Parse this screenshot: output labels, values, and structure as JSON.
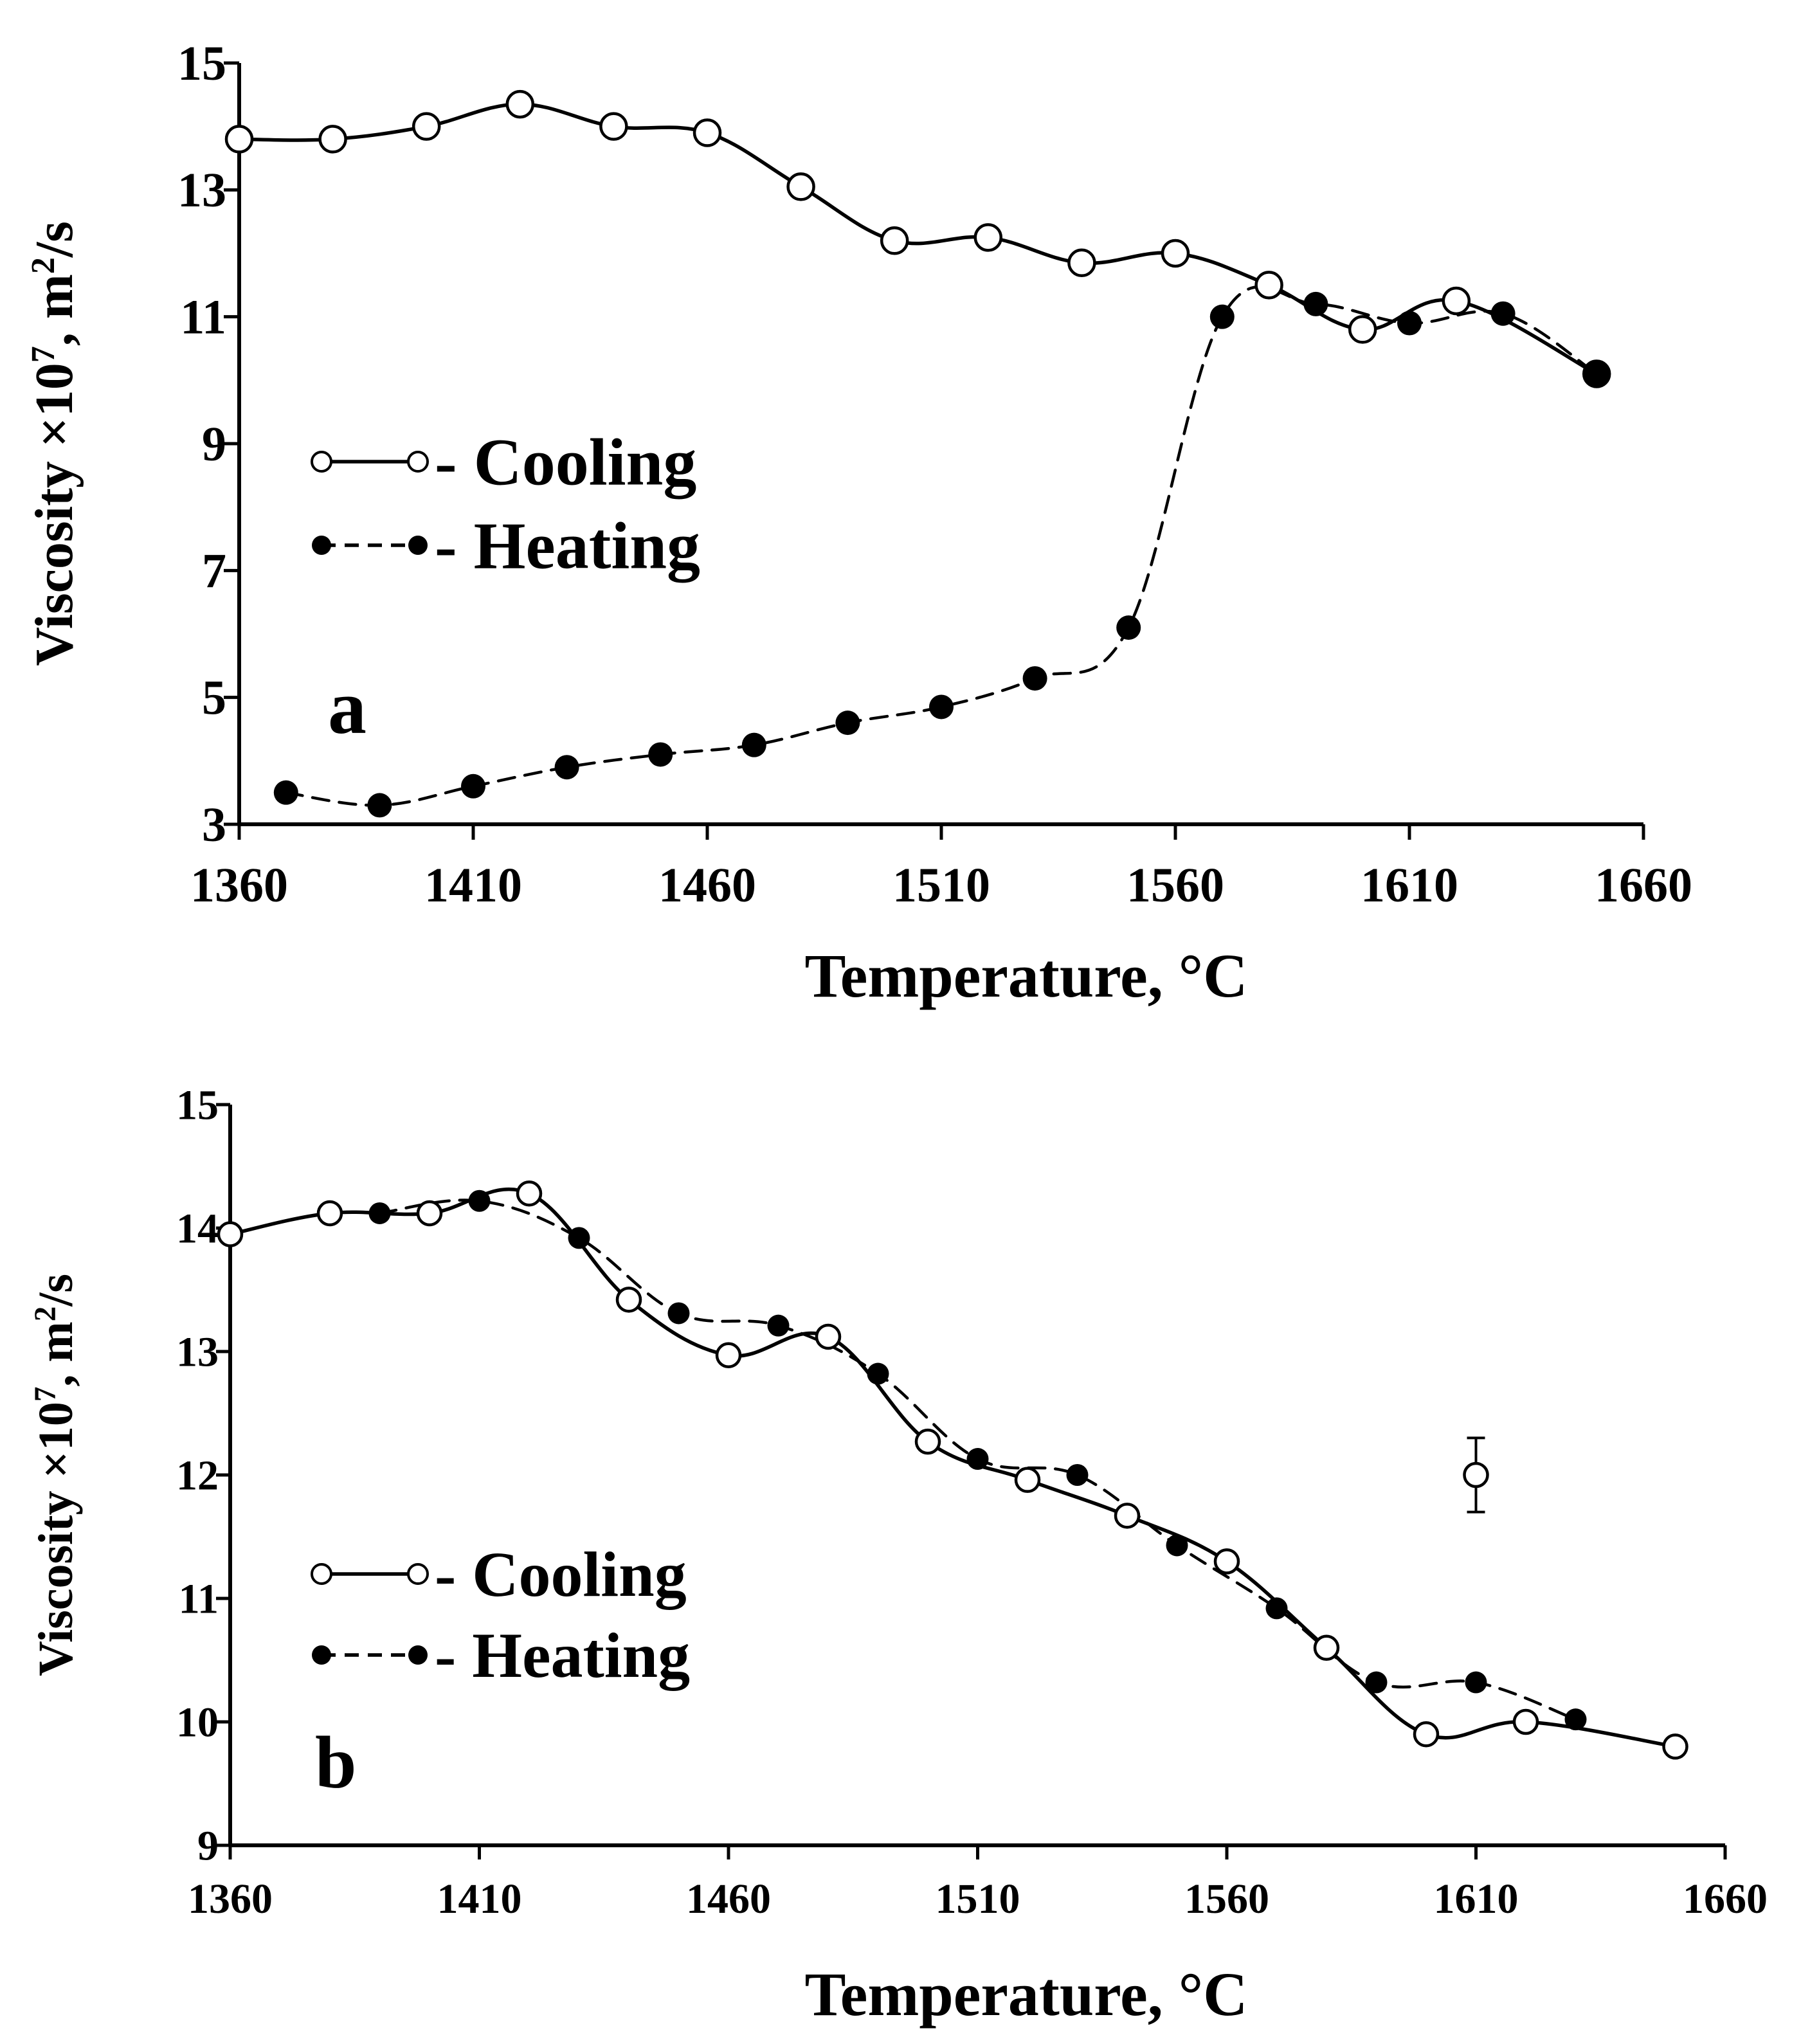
{
  "chart_data": [
    {
      "type": "line",
      "panel_label": "a",
      "xlabel": "Temperature, °C",
      "ylabel_main": "Viscosity ×10",
      "ylabel_exp": "7",
      "ylabel_tail": ", m",
      "ylabel_sq": "2",
      "ylabel_unit": "/s",
      "xlim": [
        1360,
        1660
      ],
      "ylim": [
        3,
        15
      ],
      "xticks": [
        1360,
        1410,
        1460,
        1510,
        1560,
        1610,
        1660
      ],
      "yticks": [
        3,
        5,
        7,
        9,
        11,
        13,
        15
      ],
      "series": [
        {
          "name": "Cooling",
          "legend_label": "- Cooling",
          "style": "solid",
          "marker": "open-circle",
          "x": [
            1360,
            1380,
            1400,
            1420,
            1440,
            1460,
            1480,
            1500,
            1520,
            1540,
            1560,
            1580,
            1600,
            1620,
            1650
          ],
          "y": [
            13.8,
            13.8,
            14.0,
            14.35,
            14.0,
            13.9,
            13.05,
            12.2,
            12.25,
            11.85,
            12.0,
            11.5,
            10.8,
            11.25,
            10.1
          ]
        },
        {
          "name": "Heating",
          "legend_label": "- Heating",
          "style": "dashed",
          "marker": "filled-circle",
          "x": [
            1370,
            1390,
            1410,
            1430,
            1450,
            1470,
            1490,
            1510,
            1530,
            1550,
            1570,
            1590,
            1610,
            1630,
            1650
          ],
          "y": [
            3.5,
            3.3,
            3.6,
            3.9,
            4.1,
            4.25,
            4.6,
            4.85,
            5.3,
            6.1,
            11.0,
            11.2,
            10.9,
            11.05,
            10.1
          ]
        }
      ]
    },
    {
      "type": "line",
      "panel_label": "b",
      "xlabel": "Temperature, °C",
      "ylabel_main": "Viscosity ×10",
      "ylabel_exp": "7",
      "ylabel_tail": ", m",
      "ylabel_sq": "2",
      "ylabel_unit": "/s",
      "xlim": [
        1360,
        1660
      ],
      "ylim": [
        9,
        15
      ],
      "xticks": [
        1360,
        1410,
        1460,
        1510,
        1560,
        1610,
        1660
      ],
      "yticks": [
        9,
        10,
        11,
        12,
        13,
        14,
        15
      ],
      "error_bar": {
        "x": 1610,
        "y": 12.0,
        "yerr": 0.3
      },
      "series": [
        {
          "name": "Cooling",
          "legend_label": "- Cooling",
          "style": "solid",
          "marker": "open-circle",
          "x": [
            1360,
            1380,
            1400,
            1420,
            1440,
            1460,
            1480,
            1500,
            1520,
            1540,
            1560,
            1580,
            1600,
            1620,
            1650
          ],
          "y": [
            13.95,
            14.12,
            14.12,
            14.28,
            13.42,
            12.97,
            13.12,
            12.27,
            11.96,
            11.67,
            11.3,
            10.6,
            9.9,
            10.0,
            9.8
          ]
        },
        {
          "name": "Heating",
          "legend_label": "- Heating",
          "style": "dashed",
          "marker": "filled-circle",
          "x": [
            1390,
            1410,
            1430,
            1450,
            1470,
            1490,
            1510,
            1530,
            1550,
            1570,
            1590,
            1610,
            1630
          ],
          "y": [
            14.12,
            14.22,
            13.92,
            13.31,
            13.21,
            12.82,
            12.13,
            12.0,
            11.43,
            10.92,
            10.32,
            10.32,
            10.02
          ]
        }
      ]
    }
  ]
}
